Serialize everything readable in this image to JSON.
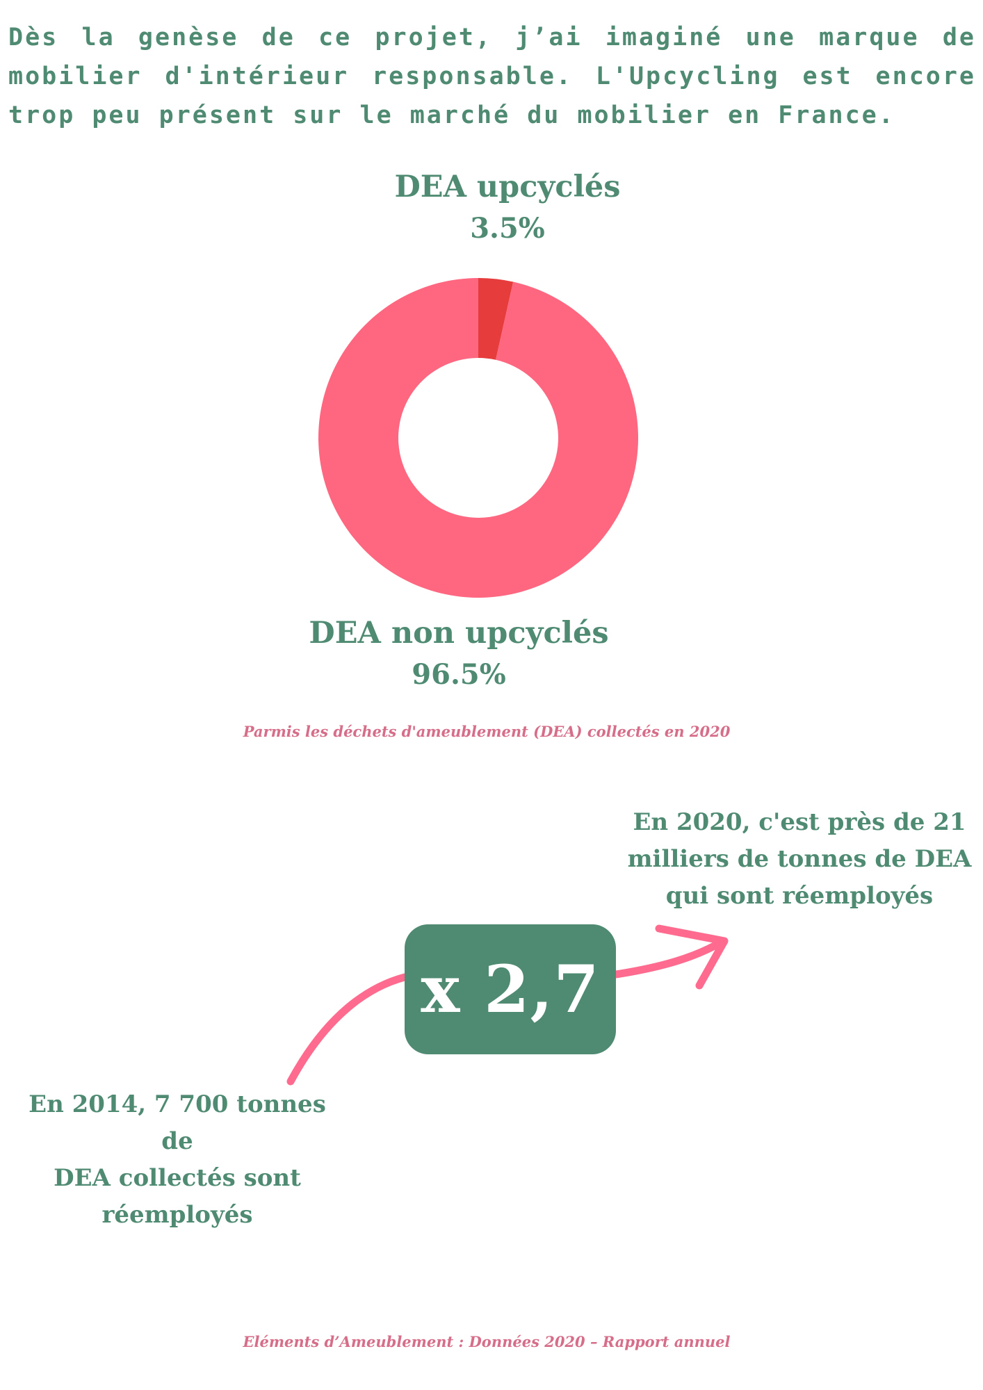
{
  "intro": "Dès la genèse de ce projet, j’ai imaginé une marque de mobilier d'intérieur responsable. L'Upcycling est encore trop peu présent sur le marché du mobilier en France.",
  "colors": {
    "green": "#4f8a73",
    "pink": "#ff6680",
    "red": "#e63c3c",
    "caption_pink": "#d66d89"
  },
  "chart_data": {
    "type": "pie",
    "donut": true,
    "slices": [
      {
        "label": "DEA upcyclés",
        "value": 3.5,
        "value_label": "3.5%",
        "color": "#e63c3c"
      },
      {
        "label": "DEA non upcyclés",
        "value": 96.5,
        "value_label": "96.5%",
        "color": "#ff6680"
      }
    ],
    "caption": "Parmis les déchets d'ameublement (DEA) collectés en 2020"
  },
  "stats": {
    "stat_2020_lines": [
      "En 2020, c'est près de 21",
      "milliers de tonnes de DEA",
      "qui sont réemployés"
    ],
    "multiplier": "x 2,7",
    "stat_2014_lines": [
      "En 2014, 7 700 tonnes de",
      "DEA collectés sont",
      "réemployés"
    ]
  },
  "source": "Eléments d’Ameublement : Données 2020 – Rapport annuel"
}
